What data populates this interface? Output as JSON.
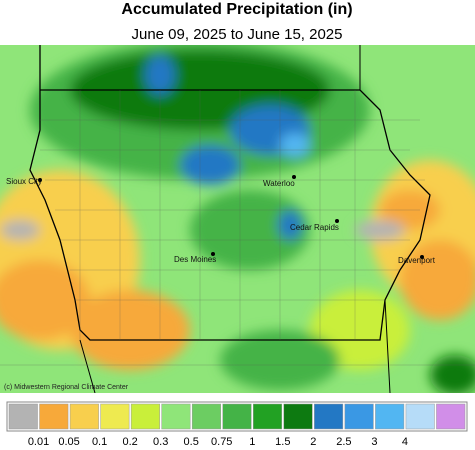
{
  "title": "Accumulated Precipitation (in)",
  "subtitle": "June 09, 2025 to June 15, 2025",
  "credit": "(c) Midwestern Regional Climate Center",
  "cities": [
    {
      "label": "Sioux City"
    },
    {
      "label": "Waterloo"
    },
    {
      "label": "Cedar Rapids"
    },
    {
      "label": "Des Moines"
    },
    {
      "label": "Davenport"
    }
  ],
  "legend": {
    "colors": [
      "#b3b3b3",
      "#f7a93a",
      "#f8cf4d",
      "#eeea50",
      "#c9ef3a",
      "#8fe579",
      "#6ccd62",
      "#44b347",
      "#22a123",
      "#0d7a11",
      "#2378c4",
      "#3a98e4",
      "#52b6f2",
      "#b6dcf8",
      "#d18ee8"
    ],
    "labels": [
      "0.01",
      "0.05",
      "0.1",
      "0.2",
      "0.3",
      "0.5",
      "0.75",
      "1",
      "1.5",
      "2",
      "2.5",
      "3",
      "4"
    ]
  }
}
